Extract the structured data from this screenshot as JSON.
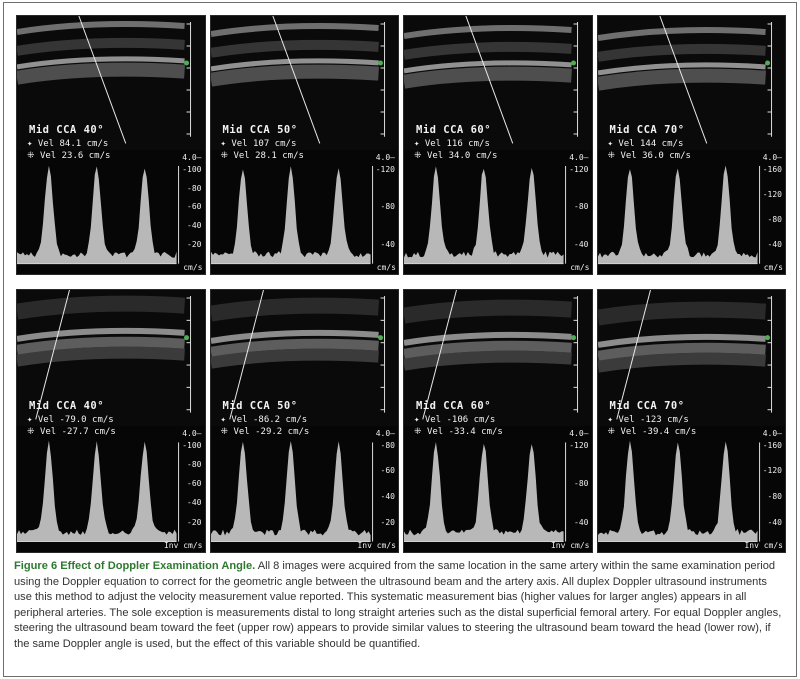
{
  "caption": {
    "label": "Figure 6",
    "title": "Effect of Doppler Examination Angle",
    "text": "All 8 images were acquired from the same location in the same artery within the same examination period using the Doppler equation to correct for the geometric angle between the ultrasound beam and the artery axis. All duplex Doppler ultrasound instruments use this method to adjust the velocity measurement value reported. This systematic measurement bias (higher values for larger angles) appears in all peripheral arteries. The sole exception is measurements distal to long straight arteries such as the distal superficial femoral artery. For equal Doppler angles, steering the ultrasound beam toward the feet (upper row) appears to provide similar values to steering the ultrasound beam toward the head (lower row), if the same Doppler angle is used, but the effect of this variable should be quantified."
  },
  "panels_top": [
    {
      "title": "Mid CCA 40°",
      "vel1": "✦ Vel 84.1 cm/s",
      "vel2": "⁜ Vel 23.6 cm/s",
      "scale_top": "4.0–",
      "scale": [
        "-100",
        "-80",
        "-60",
        "-40",
        "-20"
      ],
      "unit": "cm/s"
    },
    {
      "title": "Mid CCA 50°",
      "vel1": "✦ Vel 107 cm/s",
      "vel2": "⁜ Vel 28.1 cm/s",
      "scale_top": "4.0–",
      "scale": [
        "-120",
        "-80",
        "-40"
      ],
      "unit": "cm/s"
    },
    {
      "title": "Mid CCA 60°",
      "vel1": "✦ Vel 116 cm/s",
      "vel2": "⁜ Vel 34.0 cm/s",
      "scale_top": "4.0–",
      "scale": [
        "-120",
        "-80",
        "-40"
      ],
      "unit": "cm/s"
    },
    {
      "title": "Mid CCA 70°",
      "vel1": "✦ Vel 144 cm/s",
      "vel2": "⁜ Vel 36.0 cm/s",
      "scale_top": "4.0–",
      "scale": [
        "-160",
        "-120",
        "-80",
        "-40"
      ],
      "unit": "cm/s"
    }
  ],
  "panels_bottom": [
    {
      "title": "Mid CCA 40°",
      "vel1": "✦ Vel -79.0 cm/s",
      "vel2": "⁜ Vel -27.7 cm/s",
      "scale_top": "4.0–",
      "scale": [
        "-100",
        "-80",
        "-60",
        "-40",
        "-20"
      ],
      "unit": "Inv cm/s"
    },
    {
      "title": "Mid CCA 50°",
      "vel1": "✦ Vel -86.2 cm/s",
      "vel2": "⁜ Vel -29.2 cm/s",
      "scale_top": "4.0–",
      "scale": [
        "-80",
        "-60",
        "-40",
        "-20"
      ],
      "unit": "Inv cm/s"
    },
    {
      "title": "Mid CCA 60°",
      "vel1": "✦ Vel -106 cm/s",
      "vel2": "⁜ Vel -33.4 cm/s",
      "scale_top": "4.0–",
      "scale": [
        "-120",
        "-80",
        "-40"
      ],
      "unit": "Inv cm/s"
    },
    {
      "title": "Mid CCA 70°",
      "vel1": "✦ Vel -123 cm/s",
      "vel2": "⁜ Vel -39.4 cm/s",
      "scale_top": "4.0–",
      "scale": [
        "-160",
        "-120",
        "-80",
        "-40"
      ],
      "unit": "Inv cm/s"
    }
  ]
}
